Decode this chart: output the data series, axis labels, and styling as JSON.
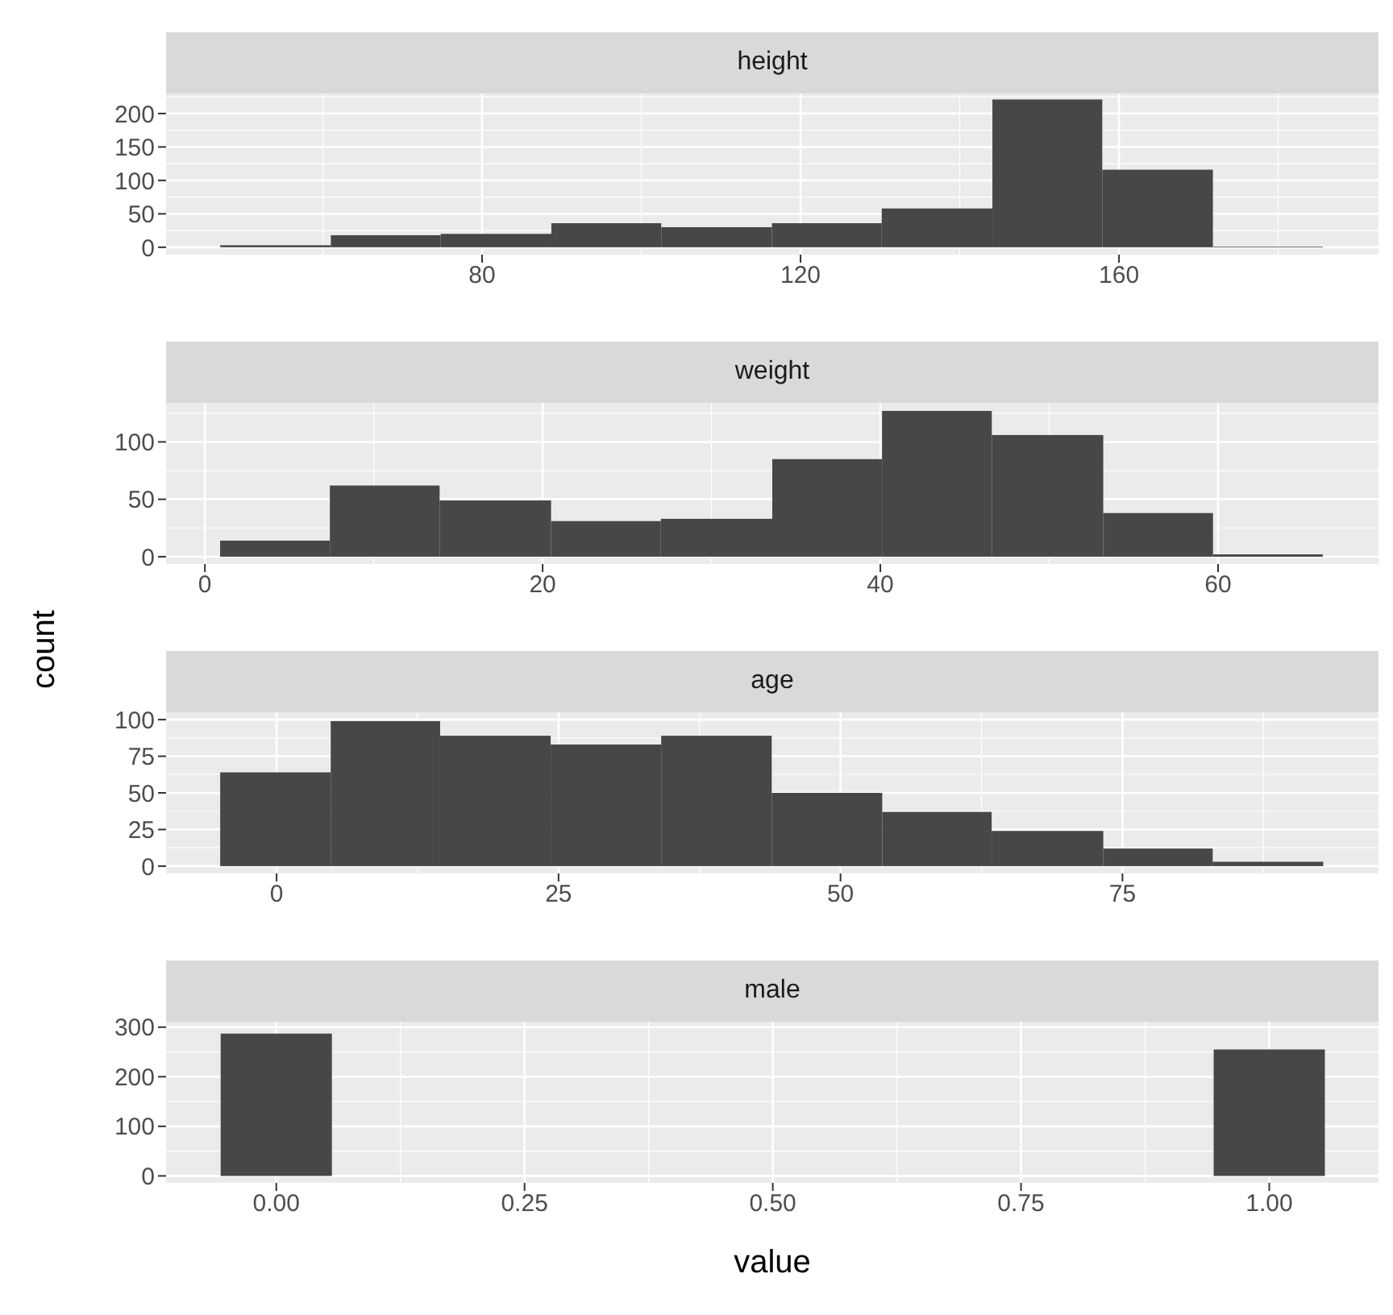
{
  "chart_data": [
    {
      "type": "histogram",
      "title": "height",
      "color": "#474747",
      "grid": true,
      "bins": [
        47.1,
        61.0,
        74.8,
        88.7,
        102.5,
        116.4,
        130.2,
        144.1,
        157.9,
        171.8,
        185.6
      ],
      "values": [
        3,
        18,
        20,
        36,
        30,
        36,
        58,
        221,
        116,
        1
      ],
      "xlim": [
        40.3,
        192.6
      ],
      "xticks": [
        80,
        120,
        160
      ],
      "ylim": [
        -11,
        230
      ],
      "yticks": [
        0,
        50,
        100,
        150,
        200
      ]
    },
    {
      "type": "histogram",
      "title": "weight",
      "color": "#474747",
      "grid": true,
      "ylabel": "count",
      "bins": [
        0.9,
        7.4,
        13.9,
        20.5,
        27.0,
        33.6,
        40.1,
        46.6,
        53.2,
        59.7,
        66.2
      ],
      "values": [
        14,
        62,
        49,
        31,
        33,
        85,
        127,
        106,
        38,
        2
      ],
      "xlim": [
        -2.3,
        69.5
      ],
      "xticks": [
        0,
        20,
        40,
        60
      ],
      "ylim": [
        -6.4,
        134
      ],
      "yticks": [
        0,
        50,
        100
      ]
    },
    {
      "type": "histogram",
      "title": "age",
      "color": "#474747",
      "grid": true,
      "bins": [
        -5.0,
        4.8,
        14.5,
        24.3,
        34.1,
        43.9,
        53.7,
        63.4,
        73.3,
        83.0,
        92.8
      ],
      "values": [
        64,
        99,
        89,
        83,
        89,
        50,
        37,
        24,
        12,
        3
      ],
      "xlim": [
        -9.8,
        97.7
      ],
      "xticks": [
        0,
        25,
        50,
        75
      ],
      "ylim": [
        -5,
        105
      ],
      "yticks": [
        0,
        25,
        50,
        75,
        100
      ]
    },
    {
      "type": "histogram",
      "title": "male",
      "color": "#474747",
      "grid": true,
      "xlabel": "value",
      "bins": [
        -0.056,
        0.056,
        0.944,
        1.056
      ],
      "values": [
        287,
        0,
        255
      ],
      "xlim": [
        -0.111,
        1.11
      ],
      "xticks": [
        {
          "value": 0,
          "label": "0.00"
        },
        {
          "value": 0.25,
          "label": "0.25"
        },
        {
          "value": 0.5,
          "label": "0.50"
        },
        {
          "value": 0.75,
          "label": "0.75"
        },
        {
          "value": 1,
          "label": "1.00"
        }
      ],
      "ylim": [
        -14,
        311
      ],
      "yticks": [
        0,
        100,
        200,
        300
      ]
    }
  ]
}
